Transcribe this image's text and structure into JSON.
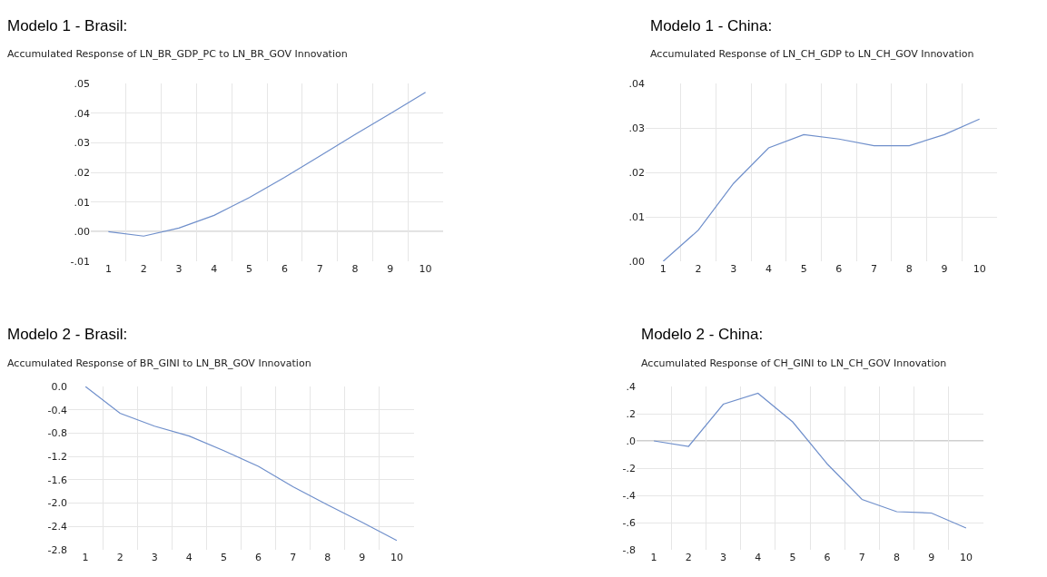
{
  "chart_data": [
    {
      "type": "line",
      "title": "Modelo 1 - Brasil:",
      "subtitle": "Accumulated Response of LN_BR_GDP_PC to LN_BR_GOV Innovation",
      "categories": [
        "1",
        "2",
        "3",
        "4",
        "5",
        "6",
        "7",
        "8",
        "9",
        "10"
      ],
      "series": [
        {
          "color": "#6f8fcb",
          "values": [
            0,
            -0.0015,
            0.0012,
            0.0055,
            0.0115,
            0.0183,
            0.0255,
            0.0328,
            0.0398,
            0.047
          ]
        }
      ],
      "ylim": [
        -0.01,
        0.05
      ],
      "yticks": [
        {
          "value": -0.01,
          "label": "-.01"
        },
        {
          "value": 0,
          "label": ".00"
        },
        {
          "value": 0.01,
          "label": ".01"
        },
        {
          "value": 0.02,
          "label": ".02"
        },
        {
          "value": 0.03,
          "label": ".03"
        },
        {
          "value": 0.04,
          "label": ".04"
        },
        {
          "value": 0.05,
          "label": ".05"
        }
      ],
      "ref_lines": [
        {
          "axis": "y",
          "value": 0,
          "color": "#bfbfbf"
        }
      ],
      "grid": true,
      "marker": "none",
      "line_style": "solid"
    },
    {
      "type": "line",
      "title": "Modelo 1 - China:",
      "subtitle": "Accumulated Response of LN_CH_GDP to LN_CH_GOV Innovation",
      "categories": [
        "1",
        "2",
        "3",
        "4",
        "5",
        "6",
        "7",
        "8",
        "9",
        "10"
      ],
      "series": [
        {
          "color": "#6f8fcb",
          "values": [
            0,
            0.007,
            0.0175,
            0.0255,
            0.0285,
            0.0275,
            0.026,
            0.026,
            0.0285,
            0.032
          ]
        }
      ],
      "ylim": [
        0,
        0.04
      ],
      "yticks": [
        {
          "value": 0,
          "label": ".00"
        },
        {
          "value": 0.01,
          "label": ".01"
        },
        {
          "value": 0.02,
          "label": ".02"
        },
        {
          "value": 0.03,
          "label": ".03"
        },
        {
          "value": 0.04,
          "label": ".04"
        }
      ],
      "grid": true,
      "marker": "none",
      "line_style": "solid"
    },
    {
      "type": "line",
      "title": "Modelo 2 - Brasil:",
      "subtitle": "Accumulated Response of BR_GINI to LN_BR_GOV Innovation",
      "categories": [
        "1",
        "2",
        "3",
        "4",
        "5",
        "6",
        "7",
        "8",
        "9",
        "10"
      ],
      "series": [
        {
          "color": "#6f8fcb",
          "values": [
            0,
            -0.46,
            -0.68,
            -0.85,
            -1.1,
            -1.37,
            -1.72,
            -2.03,
            -2.33,
            -2.64
          ]
        }
      ],
      "ylim": [
        -2.8,
        0
      ],
      "yticks": [
        {
          "value": -2.8,
          "label": "-2.8"
        },
        {
          "value": -2.4,
          "label": "-2.4"
        },
        {
          "value": -2,
          "label": "-2.0"
        },
        {
          "value": -1.6,
          "label": "-1.6"
        },
        {
          "value": -1.2,
          "label": "-1.2"
        },
        {
          "value": -0.8,
          "label": "-0.8"
        },
        {
          "value": -0.4,
          "label": "-0.4"
        },
        {
          "value": 0,
          "label": "0.0"
        }
      ],
      "grid": true,
      "marker": "none",
      "line_style": "solid"
    },
    {
      "type": "line",
      "title": "Modelo 2 - China:",
      "subtitle": "Accumulated Response of CH_GINI to LN_CH_GOV Innovation",
      "categories": [
        "1",
        "2",
        "3",
        "4",
        "5",
        "6",
        "7",
        "8",
        "9",
        "10"
      ],
      "series": [
        {
          "color": "#6f8fcb",
          "values": [
            0,
            -0.04,
            0.27,
            0.35,
            0.14,
            -0.17,
            -0.43,
            -0.52,
            -0.53,
            -0.64
          ]
        }
      ],
      "ylim": [
        -0.8,
        0.4
      ],
      "yticks": [
        {
          "value": -0.8,
          "label": "-.8"
        },
        {
          "value": -0.6,
          "label": "-.6"
        },
        {
          "value": -0.4,
          "label": "-.4"
        },
        {
          "value": -0.2,
          "label": "-.2"
        },
        {
          "value": 0,
          "label": ".0"
        },
        {
          "value": 0.2,
          "label": ".2"
        },
        {
          "value": 0.4,
          "label": ".4"
        }
      ],
      "ref_lines": [
        {
          "axis": "y",
          "value": 0,
          "color": "#bfbfbf"
        }
      ],
      "grid": true,
      "marker": "none",
      "line_style": "solid"
    }
  ]
}
